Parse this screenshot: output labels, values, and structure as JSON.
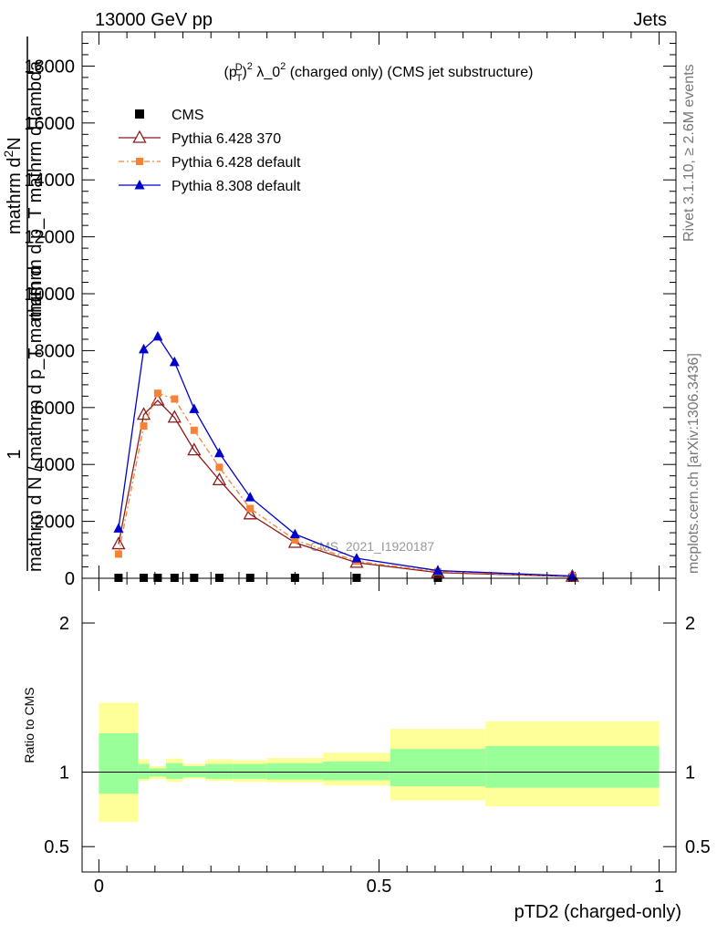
{
  "header": {
    "left": "13000 GeV pp",
    "right": "Jets"
  },
  "side_text": {
    "top": "Rivet 3.1.10, ≥ 2.6M events",
    "bottom": "mcplots.cern.ch [arXiv:1306.3436]"
  },
  "chart_data": {
    "type": "line",
    "title_parts": {
      "a": "(p",
      "sub1": "T",
      "sup1": "D",
      "b": ")",
      "sup2": "2",
      "c": " λ_0",
      "sup3": "2",
      "d": " (charged only) (CMS jet substructure)"
    },
    "title": "(p_T^D)^2 λ_0^2 (charged only) (CMS jet substructure)",
    "ylabel_top": "1",
    "ylabel_num": "mathrm d",
    "ylabel_num_sup": "2",
    "ylabel_num_n": "N",
    "ylabel_mid": "mathrm d p_T mathrm d lambda",
    "ylabel_den": "mathrm d N / mathrm d p_T mathrm d",
    "xlabel": "pTD2 (charged-only)",
    "analysis_label": "CMS_2021_I1920187",
    "xlim": [
      -0.03,
      1.03
    ],
    "ylim": [
      0,
      19200
    ],
    "y_ticks": [
      0,
      2000,
      4000,
      6000,
      8000,
      10000,
      12000,
      14000,
      16000,
      18000
    ],
    "y_tick_labels": [
      "0",
      "2000",
      "4000",
      "6000",
      "8000",
      "10000",
      "12000",
      "14000",
      "16000",
      "18000"
    ],
    "x_ticks": [
      0,
      0.5,
      1
    ],
    "x_tick_labels": [
      "0",
      "0.5",
      "1"
    ],
    "legend_position": "top-left",
    "bin_edges": [
      0,
      0.07,
      0.09,
      0.12,
      0.15,
      0.19,
      0.24,
      0.3,
      0.4,
      0.52,
      0.69,
      1.0
    ],
    "series": [
      {
        "name": "CMS",
        "color": "#000000",
        "marker": "square",
        "x": [
          0.035,
          0.08,
          0.105,
          0.135,
          0.17,
          0.215,
          0.27,
          0.35,
          0.46,
          0.605,
          0.845
        ],
        "y": [
          0,
          0,
          0,
          0,
          0,
          0,
          0,
          0,
          0,
          0,
          0
        ]
      },
      {
        "name": "Pythia 6.428 370",
        "color": "#8b1a1a",
        "marker": "open-triangle",
        "x": [
          0.035,
          0.08,
          0.105,
          0.135,
          0.17,
          0.215,
          0.27,
          0.35,
          0.46,
          0.605,
          0.845
        ],
        "y": [
          1200,
          5750,
          6250,
          5650,
          4500,
          3450,
          2250,
          1250,
          550,
          200,
          60
        ]
      },
      {
        "name": "Pythia 6.428 default",
        "color": "#f58235",
        "marker": "square-filled",
        "x": [
          0.035,
          0.08,
          0.105,
          0.135,
          0.17,
          0.215,
          0.27,
          0.35,
          0.46,
          0.605,
          0.845
        ],
        "y": [
          850,
          5350,
          6500,
          6300,
          5200,
          3900,
          2450,
          1350,
          600,
          230,
          70
        ]
      },
      {
        "name": "Pythia 8.308 default",
        "color": "#0000cc",
        "marker": "triangle-filled",
        "x": [
          0.035,
          0.08,
          0.105,
          0.135,
          0.17,
          0.215,
          0.27,
          0.35,
          0.46,
          0.605,
          0.845
        ],
        "y": [
          1750,
          8050,
          8500,
          7600,
          5950,
          4400,
          2850,
          1550,
          700,
          270,
          80
        ]
      }
    ],
    "ratio": {
      "ylabel": "Ratio to CMS",
      "ylim": [
        0.33,
        2.3
      ],
      "y_ticks": [
        0.5,
        1,
        2
      ],
      "y_tick_labels": [
        "0.5",
        "1",
        "2"
      ],
      "inner_band_color": "#99ff99",
      "outer_band_color": "#ffff99",
      "bands": [
        {
          "x0": 0.0,
          "x1": 0.07,
          "inner": [
            0.855,
            1.26
          ],
          "outer": [
            0.665,
            1.465
          ]
        },
        {
          "x0": 0.07,
          "x1": 0.09,
          "inner": [
            0.955,
            1.055
          ],
          "outer": [
            0.94,
            1.085
          ]
        },
        {
          "x0": 0.09,
          "x1": 0.12,
          "inner": [
            0.97,
            1.025
          ],
          "outer": [
            0.955,
            1.04
          ]
        },
        {
          "x0": 0.12,
          "x1": 0.15,
          "inner": [
            0.955,
            1.06
          ],
          "outer": [
            0.935,
            1.09
          ]
        },
        {
          "x0": 0.15,
          "x1": 0.19,
          "inner": [
            0.965,
            1.04
          ],
          "outer": [
            0.955,
            1.055
          ]
        },
        {
          "x0": 0.19,
          "x1": 0.24,
          "inner": [
            0.955,
            1.055
          ],
          "outer": [
            0.94,
            1.085
          ]
        },
        {
          "x0": 0.24,
          "x1": 0.3,
          "inner": [
            0.955,
            1.055
          ],
          "outer": [
            0.935,
            1.08
          ]
        },
        {
          "x0": 0.3,
          "x1": 0.4,
          "inner": [
            0.95,
            1.06
          ],
          "outer": [
            0.93,
            1.095
          ]
        },
        {
          "x0": 0.4,
          "x1": 0.52,
          "inner": [
            0.945,
            1.07
          ],
          "outer": [
            0.91,
            1.13
          ]
        },
        {
          "x0": 0.52,
          "x1": 0.69,
          "inner": [
            0.905,
            1.155
          ],
          "outer": [
            0.81,
            1.29
          ]
        },
        {
          "x0": 0.69,
          "x1": 1.0,
          "inner": [
            0.895,
            1.175
          ],
          "outer": [
            0.77,
            1.34
          ]
        }
      ]
    }
  }
}
